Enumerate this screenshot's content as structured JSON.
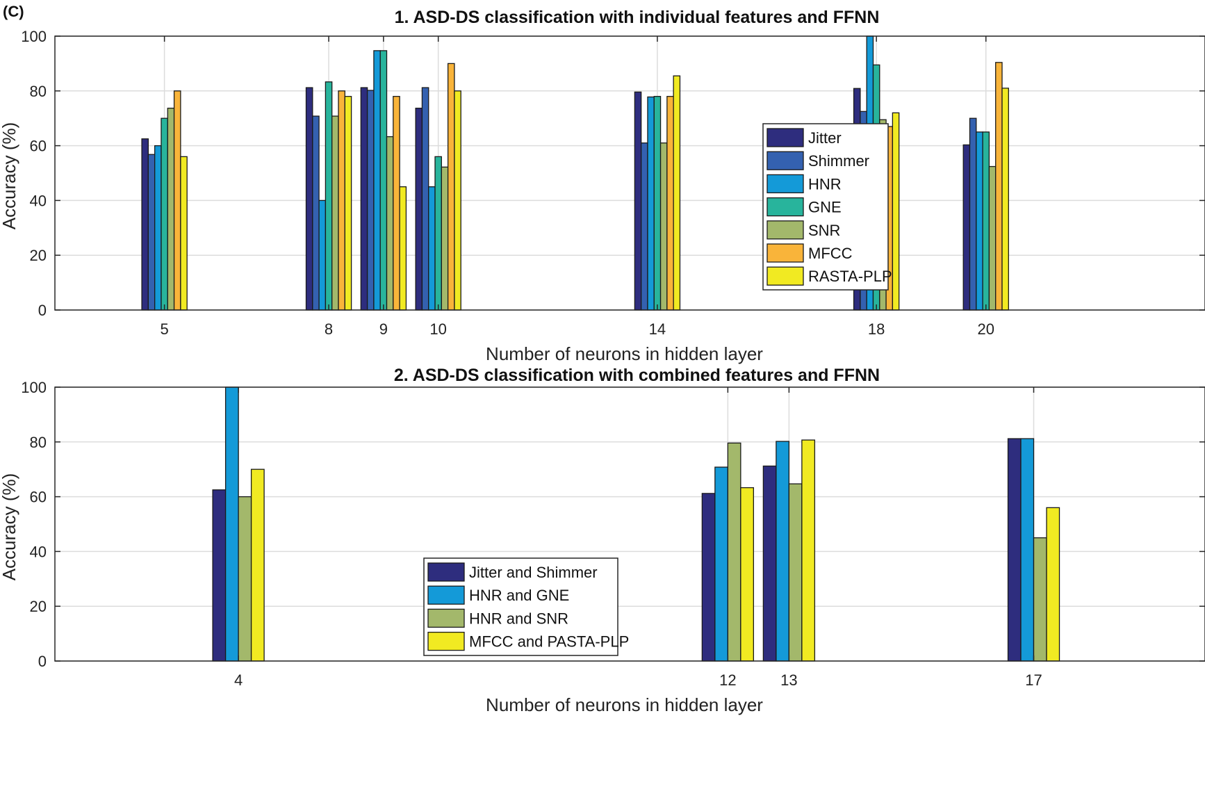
{
  "panel_tag": "(C)",
  "chart_data": [
    {
      "type": "bar",
      "title": "1. ASD-DS classification with individual features and FFNN",
      "xlabel": "Number of neurons in hidden layer",
      "ylabel": "Accuracy (%)",
      "ylim": [
        0,
        100
      ],
      "yticks": [
        0,
        20,
        40,
        60,
        80,
        100
      ],
      "xlim": [
        3,
        24
      ],
      "grid": true,
      "legend": "center-right",
      "categories": [
        "5",
        "8",
        "9",
        "10",
        "14",
        "18",
        "20"
      ],
      "series": [
        {
          "name": "Jitter",
          "color": "#2e2d7e",
          "values": [
            62.5,
            81.2,
            81.2,
            73.7,
            79.6,
            80.9,
            60.3
          ]
        },
        {
          "name": "Shimmer",
          "color": "#3461b0",
          "values": [
            56.8,
            70.8,
            80.2,
            81.2,
            61,
            72.5,
            70
          ]
        },
        {
          "name": "HNR",
          "color": "#149ad8",
          "values": [
            60,
            40,
            94.7,
            45,
            77.8,
            100,
            65
          ]
        },
        {
          "name": "GNE",
          "color": "#28b49c",
          "values": [
            70,
            83.3,
            94.7,
            56,
            78,
            89.5,
            65
          ]
        },
        {
          "name": "SNR",
          "color": "#a3b86b",
          "values": [
            73.7,
            70.8,
            63.3,
            52.2,
            61,
            69.5,
            52.4
          ]
        },
        {
          "name": "MFCC",
          "color": "#f9b43a",
          "values": [
            80,
            80,
            78,
            90,
            78,
            67,
            90.4
          ]
        },
        {
          "name": "RASTA-PLP",
          "color": "#f1ea22",
          "values": [
            56,
            78,
            45,
            80,
            85.5,
            72,
            81
          ]
        }
      ]
    },
    {
      "type": "bar",
      "title": "2. ASD-DS classification with combined features and FFNN",
      "xlabel": "Number of neurons in hidden layer",
      "ylabel": "Accuracy (%)",
      "ylim": [
        0,
        100
      ],
      "yticks": [
        0,
        20,
        40,
        60,
        80,
        100
      ],
      "xlim": [
        1,
        19.8
      ],
      "grid": true,
      "legend": "center",
      "categories": [
        "4",
        "12",
        "13",
        "17"
      ],
      "series": [
        {
          "name": "Jitter and Shimmer",
          "color": "#2e2d7e",
          "values": [
            62.5,
            61.2,
            71.2,
            81.2
          ]
        },
        {
          "name": "HNR and GNE",
          "color": "#149ad8",
          "values": [
            100,
            70.8,
            80.2,
            81.2
          ]
        },
        {
          "name": "HNR and SNR",
          "color": "#a3b86b",
          "values": [
            60,
            79.6,
            64.7,
            45
          ]
        },
        {
          "name": "MFCC and PASTA-PLP",
          "color": "#f1ea22",
          "values": [
            70,
            63.3,
            80.7,
            56
          ]
        }
      ]
    }
  ]
}
